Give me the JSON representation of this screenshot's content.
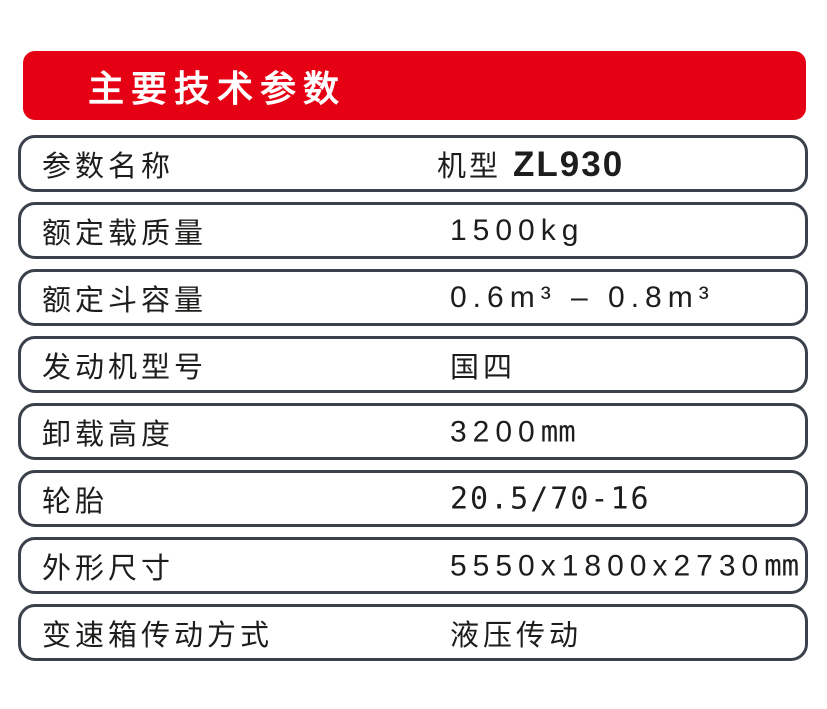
{
  "banner": {
    "title": "主要技术参数",
    "bg_color": "#e60013",
    "text_color": "#ffffff"
  },
  "table": {
    "border_color": "#3a414b",
    "text_color": "#1d1d1b",
    "rows": [
      {
        "label": "参数名称",
        "value_prefix": "机型",
        "model": "ZL930"
      },
      {
        "label": "额定载质量",
        "value": "1500kg"
      },
      {
        "label": "额定斗容量",
        "value": "0.6m³ – 0.8m³"
      },
      {
        "label": "发动机型号",
        "value": "国四"
      },
      {
        "label": "卸载高度",
        "value": "3200",
        "unit": "mm"
      },
      {
        "label": "轮胎",
        "value": "20.5/70-16"
      },
      {
        "label": "外形尺寸",
        "value": "5550x1800x2730",
        "unit": "mm"
      },
      {
        "label": "变速箱传动方式",
        "value": "液压传动"
      }
    ]
  }
}
